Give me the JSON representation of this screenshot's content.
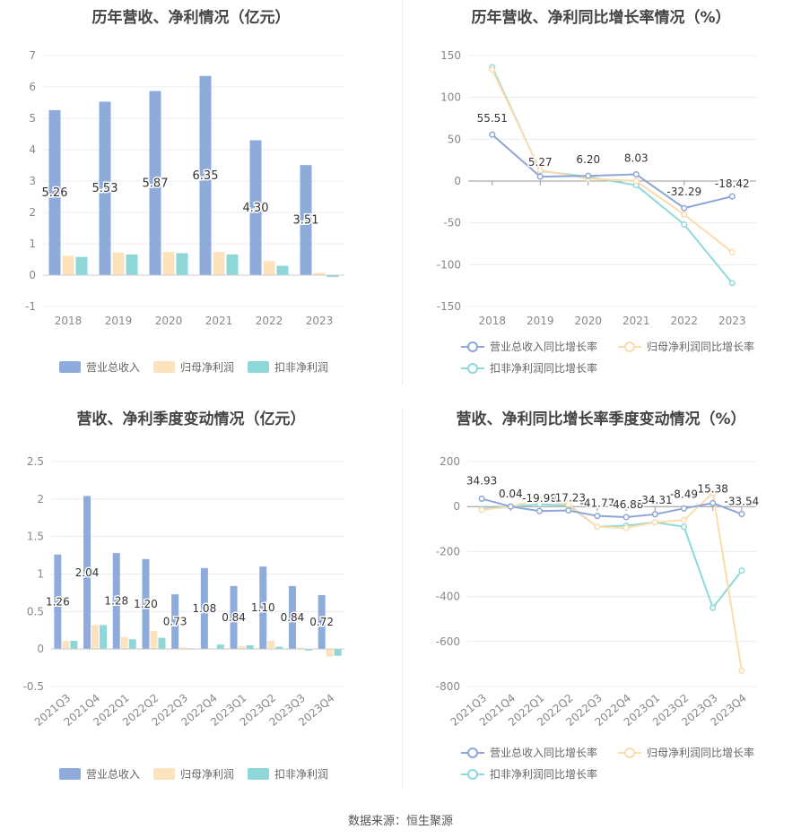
{
  "source": "数据来源：恒生聚源",
  "colors": {
    "revenue": "#8eabdb",
    "net_profit": "#fde3bd",
    "deducted_profit": "#8ed7d9",
    "rev_growth_line": "#8ea6d6",
    "np_growth_line": "#fddcac",
    "dp_growth_line": "#8ed9d9",
    "grid": "#e9ecf3",
    "axis_text": "#888888"
  },
  "chart_data": [
    {
      "type": "bar",
      "title": "历年营收、净利情况（亿元）",
      "categories": [
        "2018",
        "2019",
        "2020",
        "2021",
        "2022",
        "2023"
      ],
      "ylim": [
        -1,
        7
      ],
      "yticks": [
        "-1",
        "0",
        "1",
        "2",
        "3",
        "4",
        "5",
        "6",
        "7"
      ],
      "series": [
        {
          "name": "营业总收入",
          "values": [
            5.26,
            5.53,
            5.87,
            6.35,
            4.3,
            3.51
          ],
          "labels": [
            "5.26",
            "5.53",
            "5.87",
            "6.35",
            "4.30",
            "3.51"
          ]
        },
        {
          "name": "归母净利润",
          "values": [
            0.62,
            0.72,
            0.74,
            0.74,
            0.45,
            0.07
          ]
        },
        {
          "name": "扣非净利润",
          "values": [
            0.58,
            0.66,
            0.7,
            0.66,
            0.3,
            -0.06
          ]
        }
      ],
      "legend": "bottom",
      "grid": true
    },
    {
      "type": "line",
      "title": "历年营收、净利同比增长率情况（%）",
      "categories": [
        "2018",
        "2019",
        "2020",
        "2021",
        "2022",
        "2023"
      ],
      "ylim": [
        -150,
        150
      ],
      "yticks": [
        "-150",
        "-100",
        "-50",
        "0",
        "50",
        "100",
        "150"
      ],
      "series": [
        {
          "name": "营业总收入同比增长率",
          "values": [
            55.51,
            5.27,
            6.2,
            8.03,
            -32.29,
            -18.42
          ],
          "labels": [
            "55.51",
            "5.27",
            "6.20",
            "8.03",
            "-32.29",
            "-18.42"
          ]
        },
        {
          "name": "归母净利润同比增长率",
          "values": [
            133,
            13,
            3,
            0,
            -40,
            -85
          ]
        },
        {
          "name": "扣非净利润同比增长率",
          "values": [
            136,
            12,
            5,
            -5,
            -52,
            -122
          ]
        }
      ],
      "legend": "bottom",
      "grid": true
    },
    {
      "type": "bar",
      "title": "营收、净利季度变动情况（亿元）",
      "categories": [
        "2021Q3",
        "2021Q4",
        "2022Q1",
        "2022Q2",
        "2022Q3",
        "2022Q4",
        "2023Q1",
        "2023Q2",
        "2023Q3",
        "2023Q4"
      ],
      "ylim": [
        -0.5,
        2.5
      ],
      "yticks": [
        "-0.5",
        "0",
        "0.5",
        "1",
        "1.5",
        "2",
        "2.5"
      ],
      "series": [
        {
          "name": "营业总收入",
          "values": [
            1.26,
            2.04,
            1.28,
            1.2,
            0.73,
            1.08,
            0.84,
            1.1,
            0.84,
            0.72
          ],
          "labels": [
            "1.26",
            "2.04",
            "1.28",
            "1.20",
            "0.73",
            "1.08",
            "0.84",
            "1.10",
            "0.84",
            "0.72"
          ]
        },
        {
          "name": "归母净利润",
          "values": [
            0.11,
            0.32,
            0.16,
            0.24,
            0.02,
            0.01,
            0.04,
            0.11,
            0.02,
            -0.1
          ]
        },
        {
          "name": "扣非净利润",
          "values": [
            0.11,
            0.32,
            0.13,
            0.15,
            0.01,
            0.06,
            0.05,
            0.03,
            -0.02,
            -0.09
          ]
        }
      ],
      "legend": "bottom",
      "grid": true
    },
    {
      "type": "line",
      "title": "营收、净利同比增长率季度变动情况（%）",
      "categories": [
        "2021Q3",
        "2021Q4",
        "2022Q1",
        "2022Q2",
        "2022Q3",
        "2022Q4",
        "2023Q1",
        "2023Q2",
        "2023Q3",
        "2023Q4"
      ],
      "ylim": [
        -800,
        200
      ],
      "yticks": [
        "-800",
        "-600",
        "-400",
        "-200",
        "0",
        "200"
      ],
      "series": [
        {
          "name": "营业总收入同比增长率",
          "values": [
            34.93,
            0.04,
            -19.9,
            -17.23,
            -41.77,
            -46.88,
            -34.31,
            -8.49,
            15.38,
            -33.54
          ],
          "labels": [
            "34.93",
            "0.04",
            "-19.90",
            "-17.23",
            "-41.77",
            "-46.88",
            "-34.31",
            "-8.49",
            "15.38",
            "-33.54"
          ]
        },
        {
          "name": "归母净利润同比增长率",
          "values": [
            -15,
            0,
            30,
            10,
            -90,
            -95,
            -70,
            -60,
            60,
            -730
          ]
        },
        {
          "name": "扣非净利润同比增长率",
          "values": [
            -10,
            0,
            10,
            5,
            -90,
            -85,
            -70,
            -90,
            -450,
            -285
          ]
        }
      ],
      "legend": "bottom",
      "grid": true
    }
  ]
}
